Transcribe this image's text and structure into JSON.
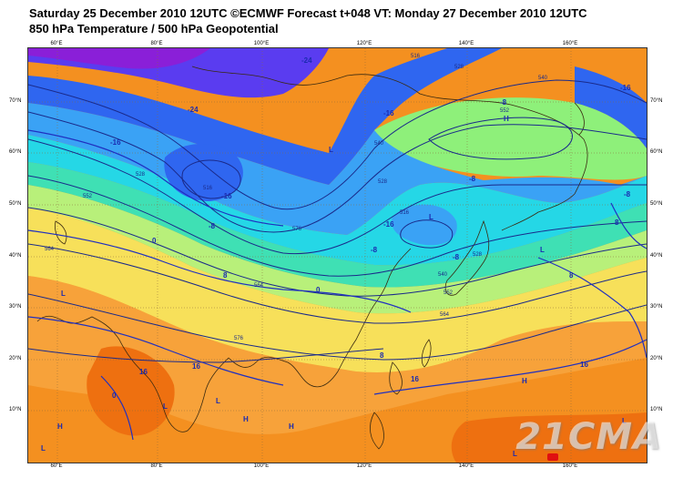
{
  "title": {
    "line1": "Saturday 25 December 2010 12UTC ©ECMWF Forecast t+048 VT: Monday 27 December 2010 12UTC",
    "line2": "850 hPa Temperature / 500 hPa Geopotential"
  },
  "watermark": "21CMA",
  "axes": {
    "lon_ticks": [
      "60°E",
      "80°E",
      "100°E",
      "120°E",
      "140°E",
      "160°E"
    ],
    "lat_ticks": [
      "70°N",
      "60°N",
      "50°N",
      "40°N",
      "30°N",
      "20°N",
      "10°N"
    ]
  },
  "temperature_labels": [
    "-24",
    "-24",
    "-16",
    "-16",
    "-16",
    "-16",
    "-8",
    "-8",
    "-8",
    "-8",
    "-16",
    "-8",
    "0",
    "8",
    "-8",
    "0",
    "8",
    "8",
    "8",
    "16",
    "16",
    "16",
    "16",
    "0"
  ],
  "geopotential_labels": [
    "516",
    "528",
    "540",
    "552",
    "540",
    "528",
    "516",
    "564",
    "576",
    "528",
    "552",
    "564",
    "576",
    "516",
    "528",
    "540",
    "552",
    "564"
  ],
  "pressure_centers": [
    "H",
    "L",
    "L",
    "L",
    "L",
    "L",
    "H",
    "H",
    "H",
    "L",
    "L",
    "L",
    "H",
    "L"
  ],
  "colors": {
    "deep_purple": "#8a1fd8",
    "violet": "#5a3cf0",
    "blue": "#2f66f0",
    "light_blue": "#3aa2f5",
    "cyan": "#25d7e6",
    "aqua_green": "#3fe0b4",
    "light_green": "#8ef07a",
    "yellow_green": "#c8f07a",
    "pale_yellow": "#f5f59a",
    "yellow": "#f7e05a",
    "orange_light": "#f7b23a",
    "orange": "#f49020",
    "dark_orange": "#ee7010",
    "red": "#e01010",
    "contour": "#1a2a8a",
    "coast": "#3a2a10",
    "grid": "#8a6a3a"
  }
}
